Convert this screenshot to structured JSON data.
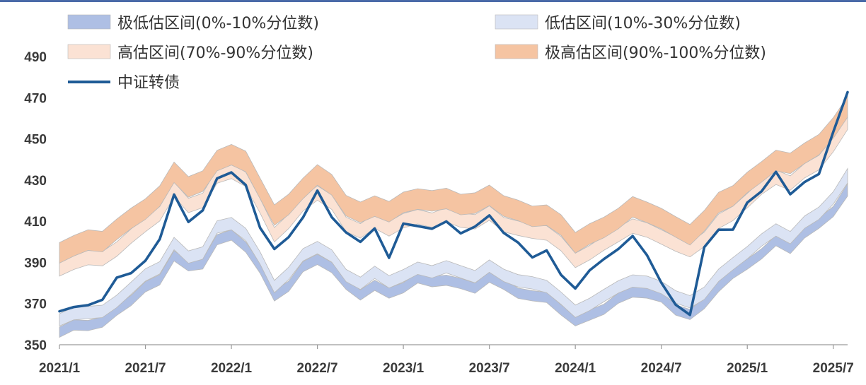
{
  "colors": {
    "band_very_low": "#aebfe4",
    "band_low": "#dbe3f4",
    "band_high": "#fbe2d4",
    "band_very_high": "#f5c4a2",
    "band_border": "#b9b9b9",
    "series_line": "#1f5b96",
    "axis": "#9a9a9a",
    "frame": "#4a6aa8"
  },
  "chart_data": {
    "type": "area",
    "title": "",
    "xlabel": "",
    "ylabel": "",
    "x_tick_labels": [
      "2021/1",
      "2021/7",
      "2022/1",
      "2022/7",
      "2023/1",
      "2023/7",
      "2024/1",
      "2024/7",
      "2025/1",
      "2025/7"
    ],
    "y_tick_labels": [
      "350",
      "370",
      "390",
      "410",
      "430",
      "450",
      "470",
      "490"
    ],
    "ylim": [
      350,
      490
    ],
    "x_range": [
      "2021/1",
      "2025/8"
    ],
    "grid": false,
    "legend_position": "top",
    "legend": [
      {
        "label": "极低估区间(0%-10%分位数)",
        "kind": "band",
        "color_key": "band_very_low"
      },
      {
        "label": "低估区间(10%-30%分位数)",
        "kind": "band",
        "color_key": "band_low"
      },
      {
        "label": "高估区间(70%-90%分位数)",
        "kind": "band",
        "color_key": "band_high"
      },
      {
        "label": "极高估区间(90%-100%分位数)",
        "kind": "band",
        "color_key": "band_very_high"
      },
      {
        "label": "中证转债",
        "kind": "line",
        "color_key": "series_line"
      }
    ],
    "x": [
      "2021/1",
      "2021/2",
      "2021/3",
      "2021/4",
      "2021/5",
      "2021/6",
      "2021/7",
      "2021/8",
      "2021/9",
      "2021/10",
      "2021/11",
      "2021/12",
      "2022/1",
      "2022/2",
      "2022/3",
      "2022/4",
      "2022/5",
      "2022/6",
      "2022/7",
      "2022/8",
      "2022/9",
      "2022/10",
      "2022/11",
      "2022/12",
      "2023/1",
      "2023/2",
      "2023/3",
      "2023/4",
      "2023/5",
      "2023/6",
      "2023/7",
      "2023/8",
      "2023/9",
      "2023/10",
      "2023/11",
      "2023/12",
      "2024/1",
      "2024/2",
      "2024/3",
      "2024/4",
      "2024/5",
      "2024/6",
      "2024/7",
      "2024/8",
      "2024/9",
      "2024/10",
      "2024/11",
      "2024/12",
      "2025/1",
      "2025/2",
      "2025/3",
      "2025/4",
      "2025/5",
      "2025/6",
      "2025/7",
      "2025/8"
    ],
    "series": [
      {
        "name": "中证转债",
        "kind": "line",
        "values": [
          367,
          370,
          368,
          372,
          382,
          384,
          393,
          401,
          422,
          410,
          414,
          432,
          435,
          426,
          407,
          396,
          402,
          414,
          424,
          411,
          405,
          399,
          408,
          393,
          407,
          408,
          406,
          410,
          406,
          406,
          412,
          405,
          399,
          394,
          396,
          382,
          378,
          386,
          392,
          398,
          401,
          393,
          381,
          369,
          366,
          397,
          404,
          407,
          419,
          425,
          435,
          421,
          429,
          434,
          453,
          474
        ]
      },
      {
        "name": "p0",
        "values": [
          353,
          357,
          358,
          358,
          364,
          369,
          375,
          380,
          391,
          385,
          387,
          398,
          401,
          396,
          384,
          371,
          376,
          385,
          390,
          385,
          376,
          372,
          376,
          373,
          376,
          379,
          378,
          379,
          377,
          376,
          380,
          376,
          373,
          371,
          371,
          365,
          358,
          362,
          365,
          370,
          374,
          372,
          370,
          365,
          362,
          368,
          376,
          381,
          387,
          392,
          398,
          395,
          401,
          406,
          413,
          422
        ]
      },
      {
        "name": "p10",
        "values": [
          358,
          362,
          363,
          363,
          369,
          374,
          380,
          385,
          396,
          390,
          392,
          403,
          406,
          401,
          389,
          376,
          381,
          390,
          395,
          390,
          381,
          377,
          381,
          378,
          381,
          384,
          383,
          384,
          382,
          381,
          385,
          381,
          378,
          376,
          376,
          370,
          363,
          367,
          370,
          375,
          379,
          377,
          375,
          370,
          367,
          373,
          381,
          386,
          392,
          397,
          403,
          400,
          406,
          411,
          418,
          428
        ]
      },
      {
        "name": "p30",
        "values": [
          364,
          368,
          369,
          369,
          375,
          380,
          386,
          391,
          402,
          396,
          398,
          409,
          412,
          407,
          395,
          382,
          387,
          396,
          401,
          396,
          387,
          383,
          387,
          384,
          387,
          390,
          389,
          390,
          388,
          387,
          391,
          387,
          384,
          382,
          382,
          376,
          369,
          373,
          376,
          381,
          385,
          383,
          381,
          376,
          373,
          379,
          387,
          392,
          398,
          403,
          409,
          406,
          412,
          417,
          424,
          435
        ]
      },
      {
        "name": "p70",
        "values": [
          383,
          387,
          388,
          388,
          394,
          399,
          405,
          410,
          421,
          415,
          417,
          428,
          431,
          426,
          414,
          401,
          406,
          415,
          420,
          415,
          406,
          402,
          406,
          403,
          406,
          409,
          408,
          409,
          407,
          406,
          410,
          406,
          403,
          401,
          401,
          395,
          388,
          392,
          395,
          400,
          404,
          402,
          400,
          395,
          392,
          398,
          406,
          411,
          417,
          422,
          428,
          425,
          431,
          436,
          443,
          454
        ]
      },
      {
        "name": "p90",
        "values": [
          390,
          394,
          395,
          395,
          401,
          406,
          412,
          417,
          428,
          422,
          424,
          435,
          438,
          433,
          421,
          408,
          413,
          422,
          427,
          422,
          413,
          409,
          413,
          410,
          413,
          416,
          415,
          416,
          414,
          413,
          417,
          413,
          410,
          408,
          408,
          402,
          395,
          399,
          402,
          407,
          411,
          409,
          407,
          402,
          399,
          405,
          413,
          418,
          424,
          429,
          435,
          432,
          438,
          443,
          450,
          461
        ]
      },
      {
        "name": "p100",
        "values": [
          400,
          404,
          405,
          405,
          411,
          416,
          422,
          427,
          438,
          432,
          434,
          445,
          448,
          443,
          431,
          418,
          423,
          432,
          437,
          432,
          423,
          419,
          423,
          420,
          423,
          426,
          425,
          426,
          424,
          423,
          427,
          423,
          420,
          418,
          418,
          412,
          405,
          409,
          412,
          417,
          421,
          419,
          417,
          412,
          409,
          415,
          423,
          428,
          434,
          439,
          445,
          442,
          448,
          453,
          460,
          471
        ]
      }
    ]
  }
}
